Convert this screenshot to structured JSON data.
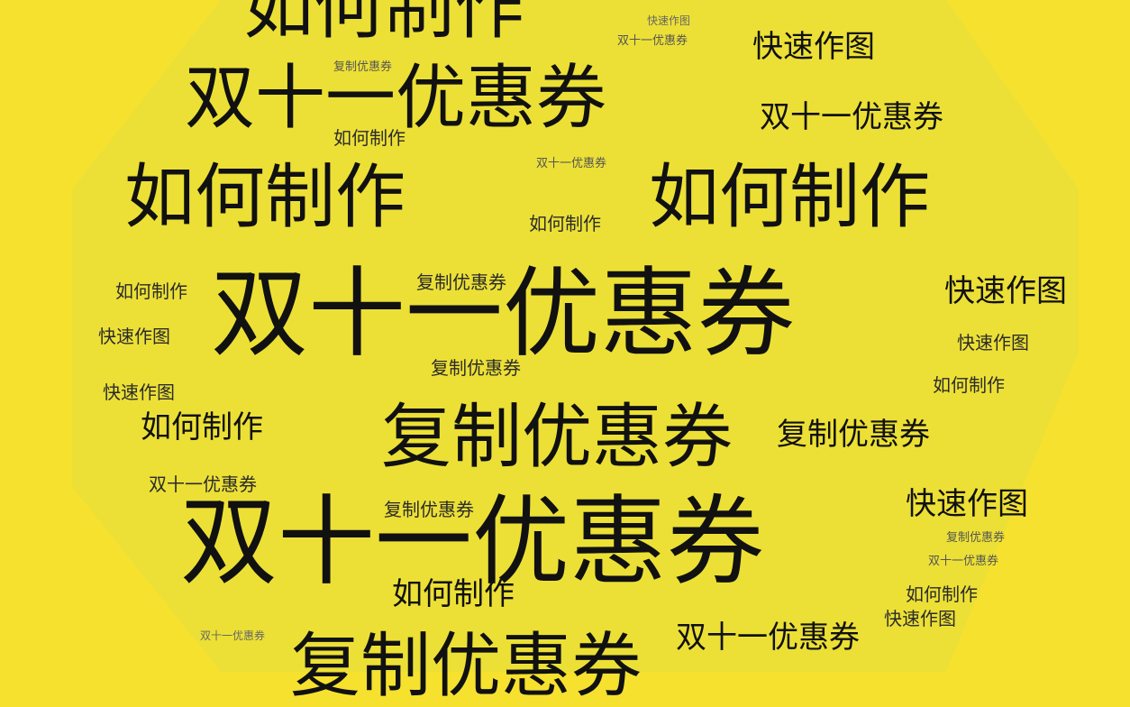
{
  "background_color": "#f6e12f",
  "shape_color": "#ece036",
  "text_color": "#111111",
  "words": [
    {
      "text": "如何制作",
      "weight": "lg"
    },
    {
      "text": "快速作图",
      "weight": "xxs"
    },
    {
      "text": "双十一优惠券",
      "weight": "xs"
    },
    {
      "text": "快速作图",
      "weight": "md"
    },
    {
      "text": "复制优惠券",
      "weight": "xs"
    },
    {
      "text": "双十一优惠券",
      "weight": "lg"
    },
    {
      "text": "双十一优惠券",
      "weight": "md"
    },
    {
      "text": "如何制作",
      "weight": "sm"
    },
    {
      "text": "双十一优惠券",
      "weight": "xs"
    },
    {
      "text": "如何制作",
      "weight": "lg"
    },
    {
      "text": "如何制作",
      "weight": "lg"
    },
    {
      "text": "如何制作",
      "weight": "sm"
    },
    {
      "text": "复制优惠券",
      "weight": "sm"
    },
    {
      "text": "如何制作",
      "weight": "sm"
    },
    {
      "text": "双十一优惠券",
      "weight": "xl"
    },
    {
      "text": "快速作图",
      "weight": "md"
    },
    {
      "text": "快速作图",
      "weight": "sm"
    },
    {
      "text": "快速作图",
      "weight": "sm"
    },
    {
      "text": "复制优惠券",
      "weight": "sm"
    },
    {
      "text": "快速作图",
      "weight": "sm"
    },
    {
      "text": "如何制作",
      "weight": "sm"
    },
    {
      "text": "如何制作",
      "weight": "md"
    },
    {
      "text": "复制优惠券",
      "weight": "lg"
    },
    {
      "text": "复制优惠券",
      "weight": "md"
    },
    {
      "text": "双十一优惠券",
      "weight": "sm"
    },
    {
      "text": "复制优惠券",
      "weight": "sm"
    },
    {
      "text": "快速作图",
      "weight": "md"
    },
    {
      "text": "双十一优惠券",
      "weight": "xl"
    },
    {
      "text": "复制优惠券",
      "weight": "xs"
    },
    {
      "text": "双十一优惠券",
      "weight": "xs"
    },
    {
      "text": "如何制作",
      "weight": "md"
    },
    {
      "text": "如何制作",
      "weight": "sm"
    },
    {
      "text": "快速作图",
      "weight": "sm"
    },
    {
      "text": "双十一优惠券",
      "weight": "xxs"
    },
    {
      "text": "复制优惠券",
      "weight": "lg"
    },
    {
      "text": "双十一优惠券",
      "weight": "md"
    }
  ]
}
